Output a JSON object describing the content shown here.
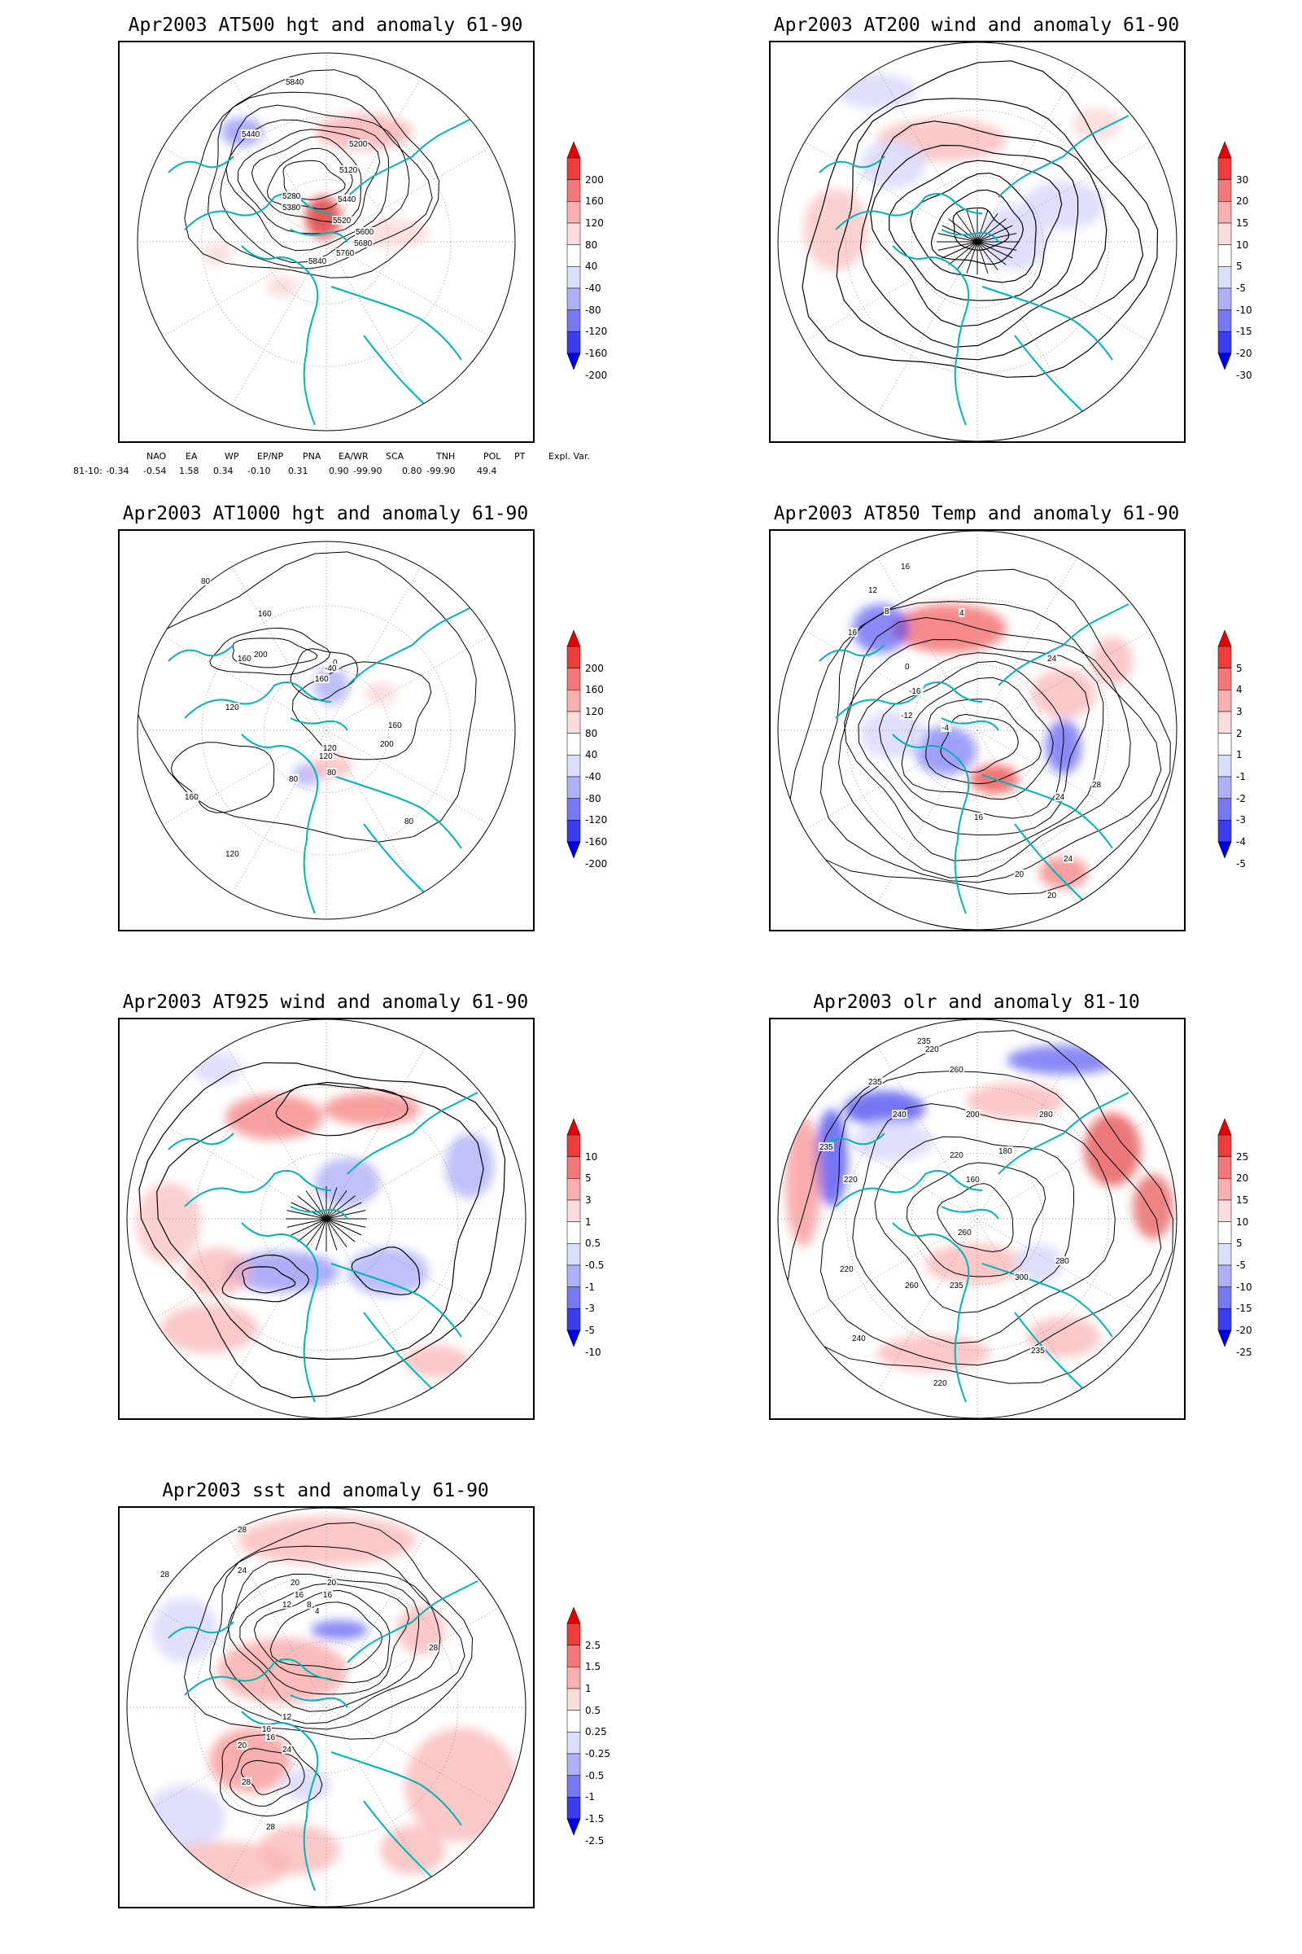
{
  "panels": [
    {
      "id": "p1",
      "title": "Apr2003 AT500 hgt and anomaly 61-90",
      "contour_labels": [
        "5840",
        "5440",
        "5200",
        "5120",
        "5280",
        "5380",
        "5440",
        "5520",
        "5600",
        "5680",
        "5760",
        "5840"
      ],
      "colorbar": [
        "200",
        "160",
        "120",
        "80",
        "40",
        "-40",
        "-80",
        "-120",
        "-160",
        "-200"
      ],
      "colorbar_colors": [
        "#e60000",
        "#f03c3c",
        "#f57878",
        "#f9b0b0",
        "#fcdcdc",
        "#ffffff",
        "#dcdcfc",
        "#b0b0f9",
        "#7878f5",
        "#3c3cf0",
        "#0000e6"
      ],
      "kind": "contour"
    },
    {
      "id": "p2",
      "title": "Apr2003 AT200 wind and anomaly 61-90",
      "contour_labels": [],
      "colorbar": [
        "30",
        "20",
        "15",
        "10",
        "5",
        "-5",
        "-10",
        "-15",
        "-20",
        "-30"
      ],
      "colorbar_colors": [
        "#e60000",
        "#f03c3c",
        "#f57878",
        "#f9b0b0",
        "#fcdcdc",
        "#ffffff",
        "#dcdcfc",
        "#b0b0f9",
        "#7878f5",
        "#3c3cf0",
        "#0000e6"
      ],
      "kind": "stream"
    },
    {
      "id": "p3",
      "title": "Apr2003 AT1000 hgt and anomaly 61-90",
      "contour_labels": [
        "80",
        "160",
        "200",
        "160",
        "0",
        "-40",
        "160",
        "120",
        "160",
        "200",
        "120",
        "80",
        "160",
        "120",
        "80",
        "80",
        "120"
      ],
      "colorbar": [
        "200",
        "160",
        "120",
        "80",
        "40",
        "-40",
        "-80",
        "-120",
        "-160",
        "-200"
      ],
      "colorbar_colors": [
        "#e60000",
        "#f03c3c",
        "#f57878",
        "#f9b0b0",
        "#fcdcdc",
        "#ffffff",
        "#dcdcfc",
        "#b0b0f9",
        "#7878f5",
        "#3c3cf0",
        "#0000e6"
      ],
      "kind": "contour"
    },
    {
      "id": "p4",
      "title": "Apr2003 AT850 Temp and anomaly 61-90",
      "contour_labels": [
        "16",
        "12",
        "8",
        "16",
        "4",
        "0",
        "-16",
        "-12",
        "-4",
        "24",
        "16",
        "24",
        "28",
        "24",
        "20",
        "20"
      ],
      "colorbar": [
        "5",
        "4",
        "3",
        "2",
        "1",
        "-1",
        "-2",
        "-3",
        "-4",
        "-5"
      ],
      "colorbar_colors": [
        "#e60000",
        "#f03c3c",
        "#f57878",
        "#f9b0b0",
        "#fcdcdc",
        "#ffffff",
        "#dcdcfc",
        "#b0b0f9",
        "#7878f5",
        "#3c3cf0",
        "#0000e6"
      ],
      "kind": "contour"
    },
    {
      "id": "p5",
      "title": "Apr2003 AT925 wind and anomaly 61-90",
      "contour_labels": [],
      "colorbar": [
        "10",
        "5",
        "3",
        "1",
        "0.5",
        "-0.5",
        "-1",
        "-3",
        "-5",
        "-10"
      ],
      "colorbar_colors": [
        "#e60000",
        "#f03c3c",
        "#f57878",
        "#f9b0b0",
        "#fcdcdc",
        "#ffffff",
        "#dcdcfc",
        "#b0b0f9",
        "#7878f5",
        "#3c3cf0",
        "#0000e6"
      ],
      "kind": "stream"
    },
    {
      "id": "p6",
      "title": "Apr2003 olr and anomaly 81-10",
      "contour_labels": [
        "235",
        "220",
        "235",
        "260",
        "240",
        "235",
        "280",
        "200",
        "220",
        "180",
        "160",
        "220",
        "260",
        "300",
        "235",
        "280",
        "260",
        "220",
        "240",
        "235",
        "220"
      ],
      "colorbar": [
        "25",
        "20",
        "15",
        "10",
        "5",
        "-5",
        "-10",
        "-15",
        "-20",
        "-25"
      ],
      "colorbar_colors": [
        "#e60000",
        "#f03c3c",
        "#f57878",
        "#f9b0b0",
        "#fcdcdc",
        "#ffffff",
        "#dcdcfc",
        "#b0b0f9",
        "#7878f5",
        "#3c3cf0",
        "#0000e6"
      ],
      "kind": "contour"
    },
    {
      "id": "p7",
      "title": "Apr2003 sst and anomaly 61-90",
      "contour_labels": [
        "28",
        "28",
        "24",
        "20",
        "20",
        "16",
        "16",
        "12",
        "8",
        "4",
        "28",
        "12",
        "16",
        "16",
        "20",
        "24",
        "28",
        "28"
      ],
      "colorbar": [
        "2.5",
        "1.5",
        "1",
        "0.5",
        "0.25",
        "-0.25",
        "-0.5",
        "-1",
        "-1.5",
        "-2.5"
      ],
      "colorbar_colors": [
        "#e60000",
        "#f03c3c",
        "#f57878",
        "#f9b0b0",
        "#fcdcdc",
        "#ffffff",
        "#dcdcfc",
        "#b0b0f9",
        "#7878f5",
        "#3c3cf0",
        "#0000e6"
      ],
      "kind": "contour"
    }
  ],
  "teleconnection": {
    "headers": [
      "NAO",
      "EA",
      "WP",
      "EP/NP",
      "PNA",
      "EA/WR",
      "SCA",
      "TNH",
      "POL",
      "PT",
      "Expl. Var."
    ],
    "row_label": "81-10:",
    "values": [
      "-0.34",
      "-0.54",
      "1.58",
      "0.34",
      "-0.10",
      "0.31",
      "0.90",
      "-99.90",
      "0.80",
      "-99.90",
      "49.4"
    ]
  },
  "colors": {
    "coastline": "#00b5b5",
    "contour": "#000000",
    "grid": "#9a9a9a"
  }
}
